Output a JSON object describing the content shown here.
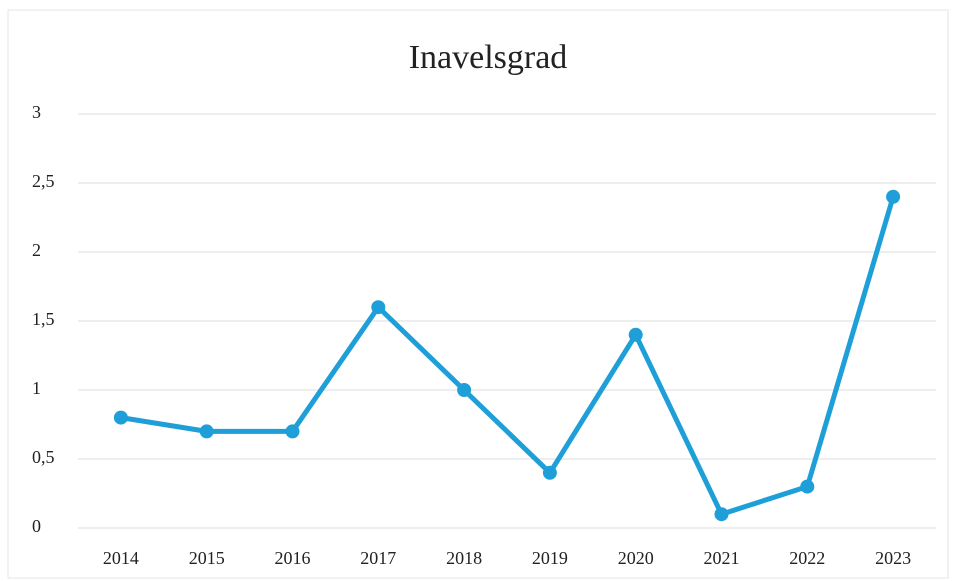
{
  "chart_data": {
    "type": "line",
    "title": "Inavelsgrad",
    "categories": [
      "2014",
      "2015",
      "2016",
      "2017",
      "2018",
      "2019",
      "2020",
      "2021",
      "2022",
      "2023"
    ],
    "values": [
      0.8,
      0.7,
      0.7,
      1.6,
      1.0,
      0.4,
      1.4,
      0.1,
      0.3,
      2.4
    ],
    "color": "#1e9fd8",
    "ylim": [
      0,
      3
    ],
    "yticks": [
      0,
      {
        "value": 0.5,
        "label": "0,5"
      },
      1,
      {
        "value": 1.5,
        "label": "1,5"
      },
      2,
      {
        "value": 2.5,
        "label": "2,5"
      },
      3
    ],
    "grid": true
  }
}
